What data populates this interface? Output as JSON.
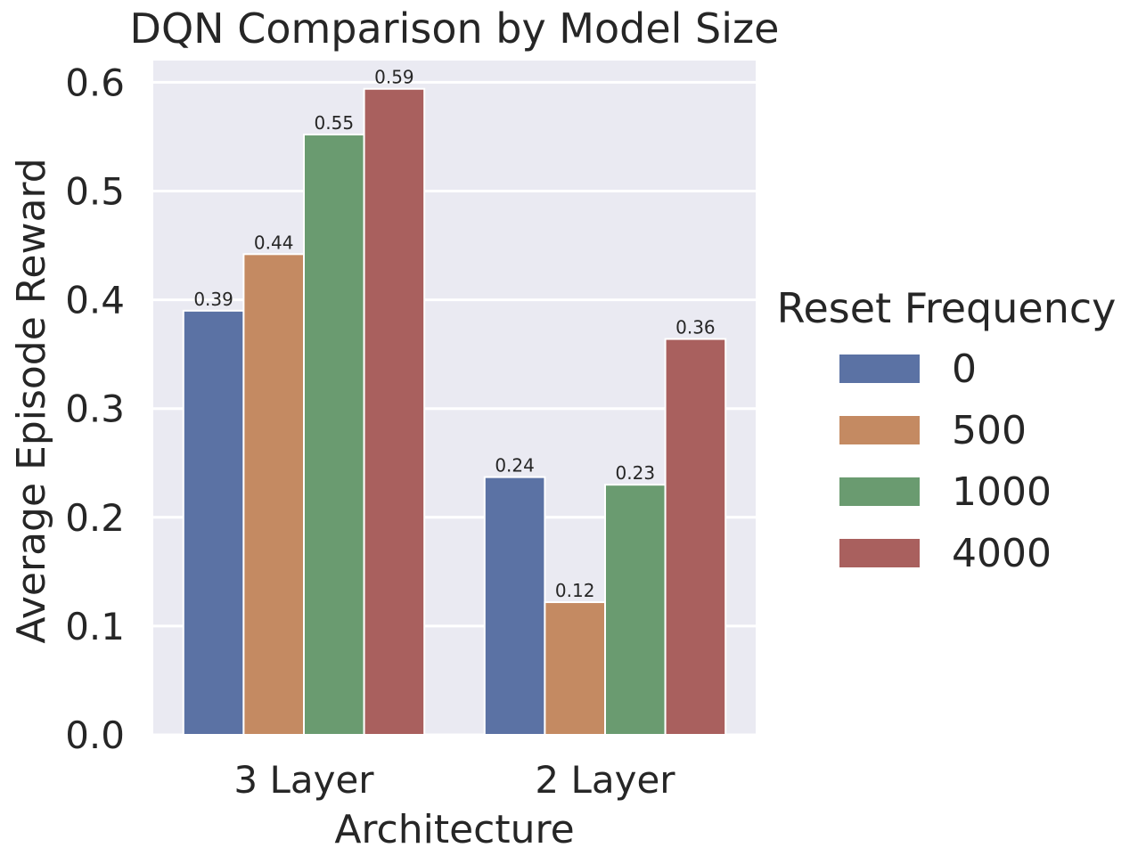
{
  "chart_data": {
    "type": "bar",
    "title": "DQN Comparison by Model Size",
    "xlabel": "Architecture",
    "ylabel": "Average Episode Reward",
    "categories": [
      "3 Layer",
      "2 Layer"
    ],
    "ylim": [
      0,
      0.62
    ],
    "yticks": [
      0.0,
      0.1,
      0.2,
      0.3,
      0.4,
      0.5,
      0.6
    ],
    "ytick_labels": [
      "0.0",
      "0.1",
      "0.2",
      "0.3",
      "0.4",
      "0.5",
      "0.6"
    ],
    "grid": true,
    "legend": {
      "title": "Reset Frequency",
      "placement": "right"
    },
    "series": [
      {
        "name": "0",
        "values": [
          0.39,
          0.237
        ],
        "labels": [
          "0.39",
          "0.24"
        ],
        "color": "#5b72a4"
      },
      {
        "name": "500",
        "values": [
          0.442,
          0.122
        ],
        "labels": [
          "0.44",
          "0.12"
        ],
        "color": "#c48a62"
      },
      {
        "name": "1000",
        "values": [
          0.552,
          0.23
        ],
        "labels": [
          "0.55",
          "0.23"
        ],
        "color": "#6a9b70"
      },
      {
        "name": "4000",
        "values": [
          0.594,
          0.364
        ],
        "labels": [
          "0.59",
          "0.36"
        ],
        "color": "#a9605e"
      }
    ],
    "background_color": "#eaeaf2"
  }
}
